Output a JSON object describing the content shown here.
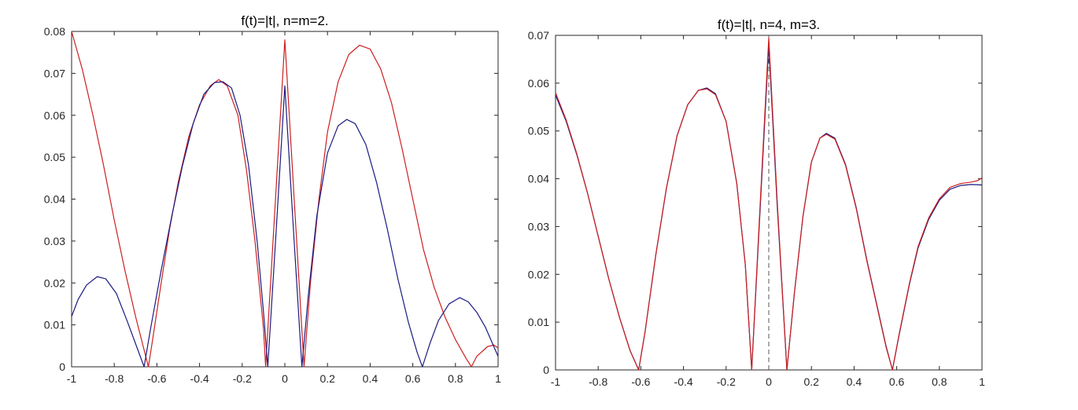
{
  "chart_data": [
    {
      "type": "line",
      "title": "f(t)=|t|, n=m=2.",
      "xlabel": "",
      "ylabel": "",
      "xlim": [
        -1,
        1
      ],
      "ylim": [
        0,
        0.08
      ],
      "xticks": [
        -1,
        -0.8,
        -0.6,
        -0.4,
        -0.2,
        0,
        0.2,
        0.4,
        0.6,
        0.8,
        1
      ],
      "xtick_labels": [
        "-1",
        "-0.8",
        "-0.6",
        "-0.4",
        "-0.2",
        "0",
        "0.2",
        "0.4",
        "0.6",
        "0.8",
        "1"
      ],
      "yticks": [
        0,
        0.01,
        0.02,
        0.03,
        0.04,
        0.05,
        0.06,
        0.07,
        0.08
      ],
      "ytick_labels": [
        "0",
        "0.01",
        "0.02",
        "0.03",
        "0.04",
        "0.05",
        "0.06",
        "0.07",
        "0.08"
      ],
      "grid": false,
      "series": [
        {
          "color": "#cc2020",
          "points": [
            [
              -1,
              0.08
            ],
            [
              -0.95,
              0.071
            ],
            [
              -0.9,
              0.06
            ],
            [
              -0.85,
              0.048
            ],
            [
              -0.8,
              0.035
            ],
            [
              -0.75,
              0.023
            ],
            [
              -0.7,
              0.012
            ],
            [
              -0.66,
              0.004
            ],
            [
              -0.64,
              0.0
            ],
            [
              -0.62,
              0.0065
            ],
            [
              -0.58,
              0.02
            ],
            [
              -0.54,
              0.033
            ],
            [
              -0.5,
              0.044
            ],
            [
              -0.45,
              0.055
            ],
            [
              -0.4,
              0.0625
            ],
            [
              -0.35,
              0.067
            ],
            [
              -0.31,
              0.0685
            ],
            [
              -0.27,
              0.067
            ],
            [
              -0.22,
              0.06
            ],
            [
              -0.18,
              0.047
            ],
            [
              -0.14,
              0.03
            ],
            [
              -0.1,
              0.009
            ],
            [
              -0.09,
              0.0
            ],
            [
              -0.045,
              0.039
            ],
            [
              0,
              0.078
            ],
            [
              0.045,
              0.039
            ],
            [
              0.09,
              0.0
            ],
            [
              0.12,
              0.02
            ],
            [
              0.16,
              0.04
            ],
            [
              0.2,
              0.056
            ],
            [
              0.25,
              0.068
            ],
            [
              0.3,
              0.0745
            ],
            [
              0.35,
              0.0767
            ],
            [
              0.4,
              0.0758
            ],
            [
              0.45,
              0.071
            ],
            [
              0.5,
              0.063
            ],
            [
              0.55,
              0.052
            ],
            [
              0.6,
              0.04
            ],
            [
              0.65,
              0.028
            ],
            [
              0.7,
              0.019
            ],
            [
              0.75,
              0.012
            ],
            [
              0.8,
              0.0065
            ],
            [
              0.85,
              0.002
            ],
            [
              0.875,
              0.0
            ],
            [
              0.9,
              0.0025
            ],
            [
              0.95,
              0.0048
            ],
            [
              0.98,
              0.0052
            ],
            [
              1,
              0.0045
            ]
          ]
        },
        {
          "color": "#1a1a80",
          "points": [
            [
              -1,
              0.012
            ],
            [
              -0.97,
              0.016
            ],
            [
              -0.93,
              0.0195
            ],
            [
              -0.88,
              0.0215
            ],
            [
              -0.84,
              0.021
            ],
            [
              -0.79,
              0.0175
            ],
            [
              -0.74,
              0.011
            ],
            [
              -0.7,
              0.0055
            ],
            [
              -0.66,
              0.0
            ],
            [
              -0.63,
              0.009
            ],
            [
              -0.58,
              0.023
            ],
            [
              -0.53,
              0.036
            ],
            [
              -0.48,
              0.048
            ],
            [
              -0.43,
              0.058
            ],
            [
              -0.38,
              0.065
            ],
            [
              -0.33,
              0.0678
            ],
            [
              -0.29,
              0.068
            ],
            [
              -0.25,
              0.0665
            ],
            [
              -0.21,
              0.06
            ],
            [
              -0.17,
              0.048
            ],
            [
              -0.13,
              0.03
            ],
            [
              -0.1,
              0.013
            ],
            [
              -0.08,
              0.0
            ],
            [
              -0.04,
              0.033
            ],
            [
              0,
              0.067
            ],
            [
              0.04,
              0.033
            ],
            [
              0.08,
              0.0
            ],
            [
              0.11,
              0.017
            ],
            [
              0.15,
              0.036
            ],
            [
              0.2,
              0.051
            ],
            [
              0.25,
              0.0575
            ],
            [
              0.29,
              0.059
            ],
            [
              0.33,
              0.058
            ],
            [
              0.38,
              0.053
            ],
            [
              0.43,
              0.044
            ],
            [
              0.48,
              0.033
            ],
            [
              0.53,
              0.021
            ],
            [
              0.58,
              0.0105
            ],
            [
              0.62,
              0.0035
            ],
            [
              0.645,
              0.0
            ],
            [
              0.68,
              0.0055
            ],
            [
              0.72,
              0.011
            ],
            [
              0.77,
              0.015
            ],
            [
              0.82,
              0.0165
            ],
            [
              0.86,
              0.0155
            ],
            [
              0.9,
              0.013
            ],
            [
              0.94,
              0.0095
            ],
            [
              0.97,
              0.006
            ],
            [
              1,
              0.0025
            ]
          ]
        }
      ]
    },
    {
      "type": "line",
      "title": "f(t)=|t|, n=4, m=3.",
      "xlabel": "",
      "ylabel": "",
      "xlim": [
        -1,
        1
      ],
      "ylim": [
        0,
        0.07
      ],
      "xticks": [
        -1,
        -0.8,
        -0.6,
        -0.4,
        -0.2,
        0,
        0.2,
        0.4,
        0.6,
        0.8,
        1
      ],
      "xtick_labels": [
        "-1",
        "-0.8",
        "-0.6",
        "-0.4",
        "-0.2",
        "0",
        "0.2",
        "0.4",
        "0.6",
        "0.8",
        "1"
      ],
      "yticks": [
        0,
        0.01,
        0.02,
        0.03,
        0.04,
        0.05,
        0.06,
        0.07
      ],
      "ytick_labels": [
        "0",
        "0.01",
        "0.02",
        "0.03",
        "0.04",
        "0.05",
        "0.06",
        "0.07"
      ],
      "grid": false,
      "vline": {
        "x": 0,
        "style": "dashed"
      },
      "series": [
        {
          "color": "#1a1a80",
          "points": [
            [
              -1,
              0.0575
            ],
            [
              -0.95,
              0.052
            ],
            [
              -0.9,
              0.045
            ],
            [
              -0.85,
              0.037
            ],
            [
              -0.8,
              0.028
            ],
            [
              -0.75,
              0.019
            ],
            [
              -0.7,
              0.011
            ],
            [
              -0.65,
              0.004
            ],
            [
              -0.61,
              0.0
            ],
            [
              -0.58,
              0.008
            ],
            [
              -0.53,
              0.024
            ],
            [
              -0.48,
              0.038
            ],
            [
              -0.43,
              0.049
            ],
            [
              -0.38,
              0.0555
            ],
            [
              -0.33,
              0.0585
            ],
            [
              -0.29,
              0.059
            ],
            [
              -0.25,
              0.0578
            ],
            [
              -0.2,
              0.052
            ],
            [
              -0.15,
              0.039
            ],
            [
              -0.11,
              0.022
            ],
            [
              -0.08,
              0.0
            ],
            [
              -0.04,
              0.034
            ],
            [
              0,
              0.068
            ],
            [
              0.04,
              0.034
            ],
            [
              0.085,
              0.0
            ],
            [
              0.12,
              0.016
            ],
            [
              0.16,
              0.032
            ],
            [
              0.2,
              0.0435
            ],
            [
              0.24,
              0.0485
            ],
            [
              0.27,
              0.0495
            ],
            [
              0.31,
              0.0485
            ],
            [
              0.36,
              0.043
            ],
            [
              0.41,
              0.034
            ],
            [
              0.46,
              0.023
            ],
            [
              0.51,
              0.013
            ],
            [
              0.55,
              0.005
            ],
            [
              0.58,
              0.0
            ],
            [
              0.61,
              0.007
            ],
            [
              0.66,
              0.018
            ],
            [
              0.7,
              0.0255
            ],
            [
              0.75,
              0.0315
            ],
            [
              0.8,
              0.0355
            ],
            [
              0.85,
              0.0378
            ],
            [
              0.9,
              0.0386
            ],
            [
              0.95,
              0.0388
            ],
            [
              1,
              0.0387
            ]
          ]
        },
        {
          "color": "#cc2020",
          "points": [
            [
              -1,
              0.058
            ],
            [
              -0.95,
              0.0523
            ],
            [
              -0.9,
              0.0452
            ],
            [
              -0.85,
              0.037
            ],
            [
              -0.8,
              0.028
            ],
            [
              -0.75,
              0.019
            ],
            [
              -0.7,
              0.011
            ],
            [
              -0.65,
              0.004
            ],
            [
              -0.61,
              0.0
            ],
            [
              -0.58,
              0.008
            ],
            [
              -0.53,
              0.024
            ],
            [
              -0.48,
              0.038
            ],
            [
              -0.43,
              0.049
            ],
            [
              -0.38,
              0.0555
            ],
            [
              -0.33,
              0.0585
            ],
            [
              -0.29,
              0.0588
            ],
            [
              -0.25,
              0.0576
            ],
            [
              -0.2,
              0.052
            ],
            [
              -0.15,
              0.039
            ],
            [
              -0.11,
              0.022
            ],
            [
              -0.08,
              0.0
            ],
            [
              -0.04,
              0.035
            ],
            [
              0,
              0.0695
            ],
            [
              0.04,
              0.035
            ],
            [
              0.085,
              0.0
            ],
            [
              0.12,
              0.016
            ],
            [
              0.16,
              0.032
            ],
            [
              0.2,
              0.0435
            ],
            [
              0.24,
              0.0485
            ],
            [
              0.27,
              0.0493
            ],
            [
              0.31,
              0.0483
            ],
            [
              0.36,
              0.0428
            ],
            [
              0.41,
              0.0338
            ],
            [
              0.46,
              0.0228
            ],
            [
              0.51,
              0.0128
            ],
            [
              0.55,
              0.0048
            ],
            [
              0.58,
              0.0
            ],
            [
              0.61,
              0.0072
            ],
            [
              0.66,
              0.0182
            ],
            [
              0.7,
              0.0258
            ],
            [
              0.75,
              0.0318
            ],
            [
              0.8,
              0.0358
            ],
            [
              0.85,
              0.0382
            ],
            [
              0.9,
              0.039
            ],
            [
              0.95,
              0.0393
            ],
            [
              0.98,
              0.0396
            ],
            [
              1,
              0.0402
            ]
          ]
        }
      ]
    }
  ]
}
